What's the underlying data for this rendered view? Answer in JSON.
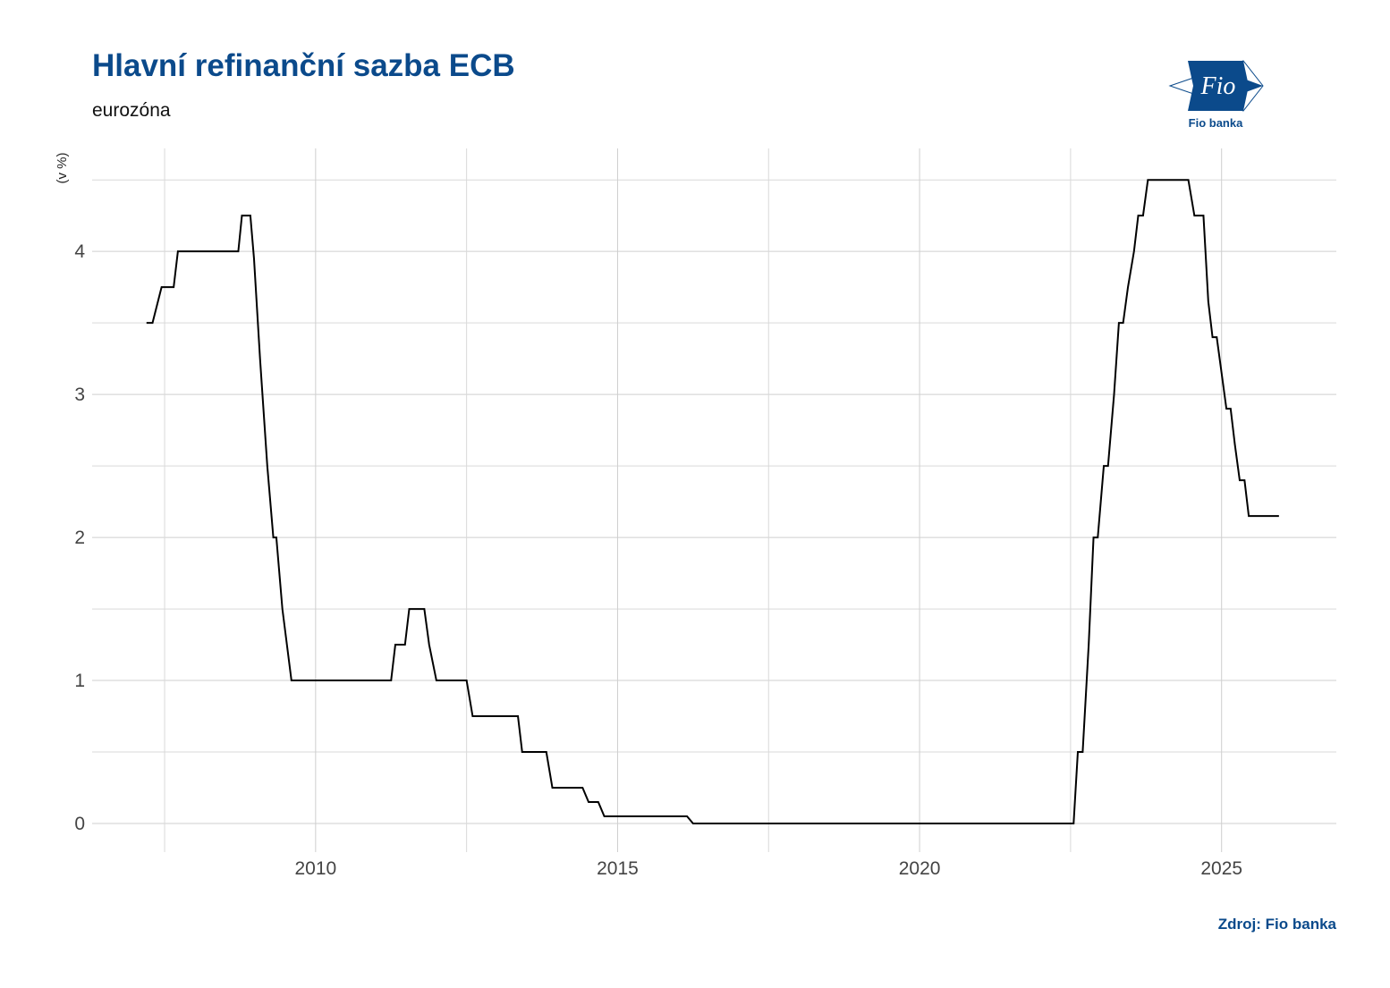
{
  "header": {
    "title": "Hlavní refinanční sazba ECB",
    "subtitle": "eurozóna"
  },
  "logo": {
    "text": "Fio",
    "caption": "Fio banka",
    "color": "#0b4a8b"
  },
  "footer": {
    "source": "Zdroj: Fio banka"
  },
  "chart_data": {
    "type": "line",
    "title": "Hlavní refinanční sazba ECB",
    "subtitle": "eurozóna",
    "xlabel": "",
    "ylabel": "(v %)",
    "xlim": [
      2006.3,
      2026.9
    ],
    "ylim": [
      -0.2,
      4.72
    ],
    "x_ticks": [
      2010,
      2015,
      2020,
      2025
    ],
    "y_ticks": [
      0,
      1,
      2,
      3,
      4
    ],
    "grid": true,
    "line_color": "#000000",
    "series": [
      {
        "values": [
          [
            2007.2,
            3.5
          ],
          [
            2007.3,
            3.5
          ],
          [
            2007.45,
            3.75
          ],
          [
            2007.65,
            3.75
          ],
          [
            2007.72,
            4.0
          ],
          [
            2008.72,
            4.0
          ],
          [
            2008.78,
            4.25
          ],
          [
            2008.92,
            4.25
          ],
          [
            2008.98,
            3.95
          ],
          [
            2009.08,
            3.25
          ],
          [
            2009.2,
            2.5
          ],
          [
            2009.3,
            2.0
          ],
          [
            2009.35,
            2.0
          ],
          [
            2009.45,
            1.5
          ],
          [
            2009.6,
            1.0
          ],
          [
            2011.25,
            1.0
          ],
          [
            2011.32,
            1.25
          ],
          [
            2011.48,
            1.25
          ],
          [
            2011.55,
            1.5
          ],
          [
            2011.8,
            1.5
          ],
          [
            2011.88,
            1.25
          ],
          [
            2012.0,
            1.0
          ],
          [
            2012.5,
            1.0
          ],
          [
            2012.6,
            0.75
          ],
          [
            2013.35,
            0.75
          ],
          [
            2013.42,
            0.5
          ],
          [
            2013.82,
            0.5
          ],
          [
            2013.92,
            0.25
          ],
          [
            2014.42,
            0.25
          ],
          [
            2014.52,
            0.15
          ],
          [
            2014.68,
            0.15
          ],
          [
            2014.78,
            0.05
          ],
          [
            2016.15,
            0.05
          ],
          [
            2016.25,
            0.0
          ],
          [
            2022.55,
            0.0
          ],
          [
            2022.62,
            0.5
          ],
          [
            2022.7,
            0.5
          ],
          [
            2022.8,
            1.25
          ],
          [
            2022.88,
            2.0
          ],
          [
            2022.95,
            2.0
          ],
          [
            2023.05,
            2.5
          ],
          [
            2023.12,
            2.5
          ],
          [
            2023.22,
            3.0
          ],
          [
            2023.3,
            3.5
          ],
          [
            2023.37,
            3.5
          ],
          [
            2023.45,
            3.75
          ],
          [
            2023.55,
            4.0
          ],
          [
            2023.62,
            4.25
          ],
          [
            2023.7,
            4.25
          ],
          [
            2023.78,
            4.5
          ],
          [
            2024.45,
            4.5
          ],
          [
            2024.55,
            4.25
          ],
          [
            2024.7,
            4.25
          ],
          [
            2024.78,
            3.65
          ],
          [
            2024.85,
            3.4
          ],
          [
            2024.92,
            3.4
          ],
          [
            2025.0,
            3.15
          ],
          [
            2025.08,
            2.9
          ],
          [
            2025.15,
            2.9
          ],
          [
            2025.22,
            2.65
          ],
          [
            2025.3,
            2.4
          ],
          [
            2025.38,
            2.4
          ],
          [
            2025.45,
            2.15
          ],
          [
            2025.95,
            2.15
          ]
        ]
      }
    ]
  }
}
